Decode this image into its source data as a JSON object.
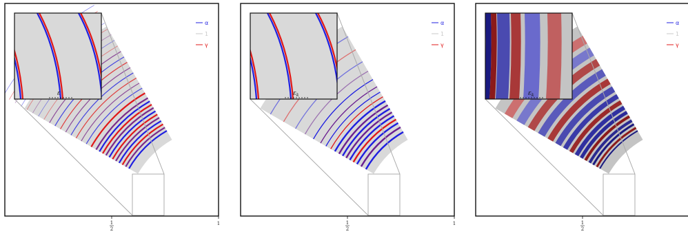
{
  "legend": [
    {
      "label": "α",
      "color": "#1f1fe0"
    },
    {
      "label": "1",
      "color": "#c8c8c8"
    },
    {
      "label": "γ",
      "color": "#e01818"
    }
  ],
  "x_tick_labels": {
    "half_num": "1",
    "half_den": "2",
    "one": "1"
  },
  "panels": [
    {
      "name": "panel-1",
      "inset_label": "ε",
      "inset_sub": "",
      "style": "lines-thin"
    },
    {
      "name": "panel-2",
      "inset_label": "ε",
      "inset_sub": "k",
      "style": "lines-sparse"
    },
    {
      "name": "panel-3",
      "inset_label": "ε",
      "inset_sub": "k",
      "style": "bands"
    }
  ],
  "colors": {
    "alpha": "#1f1fe0",
    "one": "#d9d9d9",
    "gamma": "#e01818"
  }
}
